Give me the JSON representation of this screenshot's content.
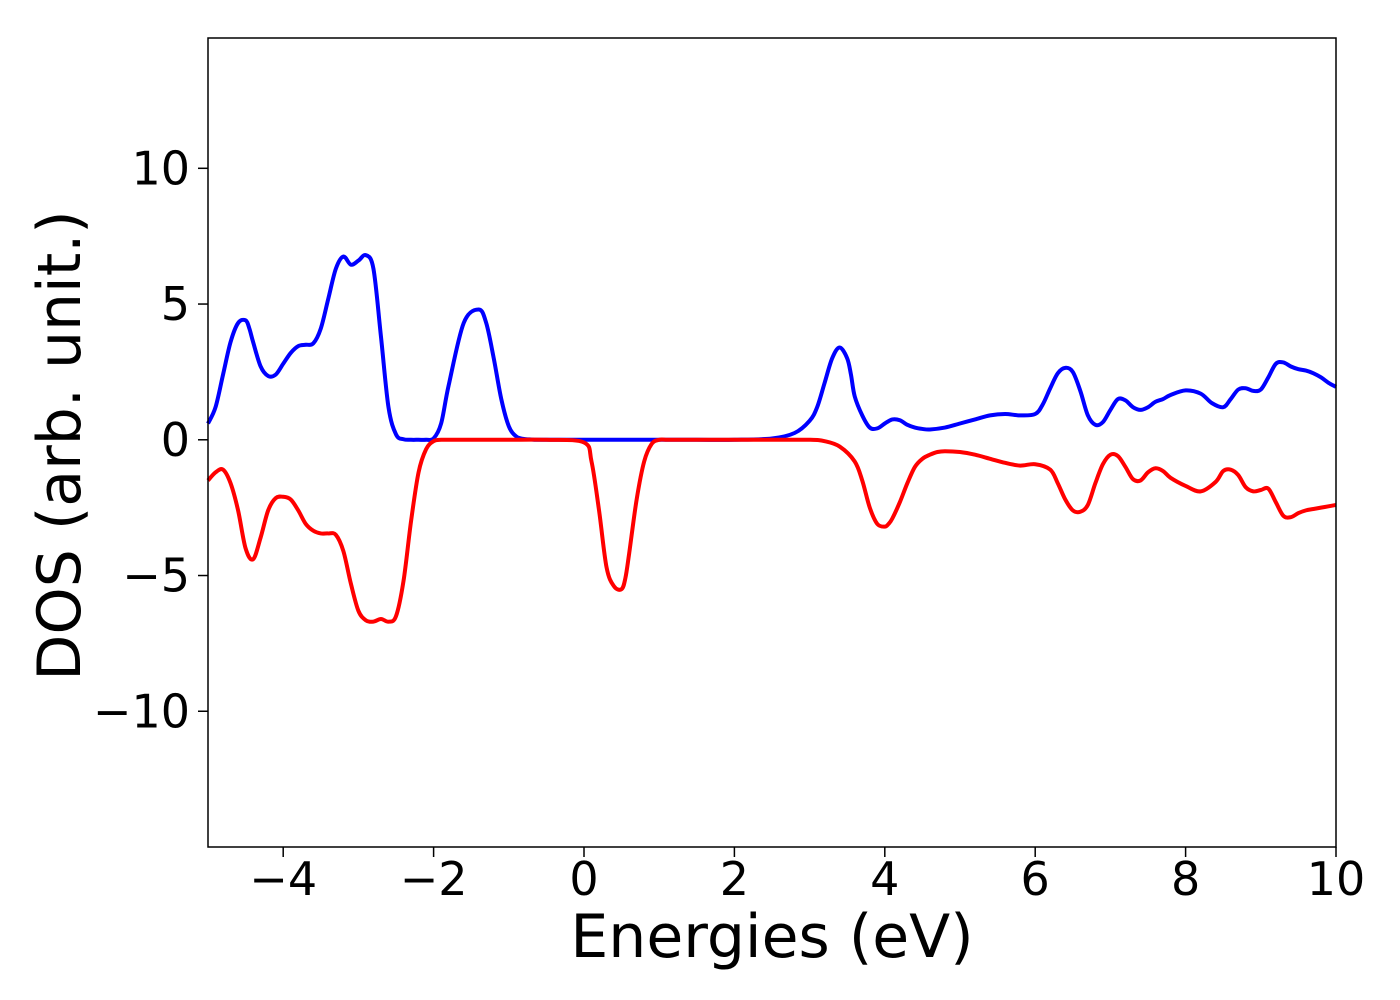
{
  "chart_data": {
    "type": "line",
    "title": "",
    "xlabel": "Energies (eV)",
    "ylabel": "DOS (arb. unit.)",
    "xlim": [
      -5,
      10
    ],
    "ylim": [
      -15,
      14.8
    ],
    "xticks": [
      -4,
      -2,
      0,
      2,
      4,
      6,
      8,
      10
    ],
    "xtick_labels": [
      "−4",
      "−2",
      "0",
      "2",
      "4",
      "6",
      "8",
      "10"
    ],
    "yticks": [
      10,
      5,
      0,
      -5,
      -10
    ],
    "ytick_labels": [
      "10",
      "5",
      "0",
      "−5",
      "−10"
    ],
    "grid": false,
    "legend": "none",
    "series": [
      {
        "color": "#0000ff",
        "x": [
          -5.0,
          -4.9,
          -4.8,
          -4.7,
          -4.6,
          -4.5,
          -4.45,
          -4.4,
          -4.3,
          -4.2,
          -4.1,
          -4.0,
          -3.9,
          -3.8,
          -3.7,
          -3.6,
          -3.5,
          -3.4,
          -3.3,
          -3.2,
          -3.1,
          -3.0,
          -2.9,
          -2.8,
          -2.7,
          -2.6,
          -2.5,
          -2.4,
          -2.3,
          -2.2,
          -2.1,
          -2.0,
          -1.9,
          -1.8,
          -1.6,
          -1.4,
          -1.3,
          -1.2,
          -1.1,
          -1.0,
          -0.9,
          -0.8,
          -0.7,
          -0.65,
          -0.6,
          -0.5,
          -0.4,
          -0.3,
          -0.2,
          -0.1,
          0.0,
          0.2,
          0.5,
          1.0,
          1.5,
          2.0,
          2.5,
          2.8,
          3.0,
          3.1,
          3.2,
          3.3,
          3.4,
          3.5,
          3.55,
          3.6,
          3.7,
          3.8,
          3.9,
          4.0,
          4.1,
          4.2,
          4.3,
          4.4,
          4.5,
          4.6,
          4.8,
          5.0,
          5.2,
          5.4,
          5.6,
          5.8,
          6.0,
          6.1,
          6.2,
          6.3,
          6.4,
          6.5,
          6.6,
          6.7,
          6.8,
          6.9,
          7.0,
          7.1,
          7.2,
          7.3,
          7.4,
          7.5,
          7.6,
          7.7,
          7.8,
          8.0,
          8.2,
          8.35,
          8.5,
          8.6,
          8.7,
          8.8,
          8.9,
          9.0,
          9.1,
          9.2,
          9.3,
          9.4,
          9.5,
          9.6,
          9.7,
          9.8,
          9.9,
          10.0
        ],
        "y": [
          0.6,
          1.2,
          2.4,
          3.6,
          4.3,
          4.4,
          4.1,
          3.6,
          2.7,
          2.35,
          2.4,
          2.8,
          3.2,
          3.45,
          3.5,
          3.55,
          4.1,
          5.2,
          6.3,
          6.75,
          6.45,
          6.6,
          6.8,
          6.3,
          3.8,
          1.2,
          0.2,
          0.02,
          0.0,
          0.0,
          0.0,
          0.05,
          0.6,
          2.0,
          4.3,
          4.8,
          4.3,
          3.0,
          1.5,
          0.5,
          0.12,
          0.03,
          0.01,
          0.0,
          0.0,
          0.0,
          0.0,
          0.0,
          0.0,
          0.0,
          0.0,
          0.0,
          0.0,
          0.0,
          0.0,
          0.0,
          0.05,
          0.25,
          0.7,
          1.2,
          2.1,
          3.0,
          3.4,
          3.0,
          2.4,
          1.6,
          0.9,
          0.45,
          0.42,
          0.6,
          0.75,
          0.72,
          0.55,
          0.45,
          0.4,
          0.38,
          0.45,
          0.6,
          0.75,
          0.9,
          0.95,
          0.9,
          0.95,
          1.3,
          1.9,
          2.45,
          2.65,
          2.5,
          1.8,
          0.9,
          0.55,
          0.65,
          1.1,
          1.5,
          1.45,
          1.2,
          1.1,
          1.2,
          1.4,
          1.5,
          1.65,
          1.82,
          1.7,
          1.35,
          1.2,
          1.5,
          1.85,
          1.9,
          1.8,
          1.85,
          2.3,
          2.8,
          2.85,
          2.7,
          2.6,
          2.55,
          2.45,
          2.3,
          2.1,
          1.95
        ]
      },
      {
        "color": "#ff0000",
        "x": [
          -5.0,
          -4.9,
          -4.8,
          -4.7,
          -4.6,
          -4.5,
          -4.4,
          -4.3,
          -4.2,
          -4.1,
          -4.0,
          -3.9,
          -3.8,
          -3.7,
          -3.6,
          -3.5,
          -3.4,
          -3.3,
          -3.2,
          -3.1,
          -3.0,
          -2.9,
          -2.8,
          -2.7,
          -2.6,
          -2.5,
          -2.4,
          -2.3,
          -2.2,
          -2.1,
          -2.0,
          -1.9,
          -1.8,
          -1.7,
          -1.6,
          -1.4,
          -1.0,
          -0.5,
          0.0,
          0.1,
          0.2,
          0.3,
          0.4,
          0.5,
          0.55,
          0.6,
          0.7,
          0.8,
          0.9,
          1.0,
          1.1,
          1.2,
          1.5,
          2.0,
          2.5,
          3.0,
          3.2,
          3.4,
          3.6,
          3.7,
          3.8,
          3.9,
          4.0,
          4.05,
          4.1,
          4.2,
          4.3,
          4.4,
          4.5,
          4.6,
          4.7,
          4.8,
          5.0,
          5.2,
          5.4,
          5.6,
          5.8,
          6.0,
          6.2,
          6.3,
          6.4,
          6.5,
          6.6,
          6.7,
          6.8,
          6.9,
          7.0,
          7.1,
          7.2,
          7.3,
          7.4,
          7.5,
          7.6,
          7.7,
          7.8,
          8.0,
          8.2,
          8.4,
          8.5,
          8.6,
          8.7,
          8.8,
          8.9,
          9.0,
          9.1,
          9.2,
          9.3,
          9.4,
          9.5,
          9.6,
          9.7,
          9.8,
          9.9,
          10.0
        ],
        "y": [
          -1.5,
          -1.2,
          -1.1,
          -1.6,
          -2.6,
          -4.0,
          -4.4,
          -3.6,
          -2.6,
          -2.15,
          -2.1,
          -2.2,
          -2.6,
          -3.1,
          -3.35,
          -3.45,
          -3.45,
          -3.5,
          -4.1,
          -5.3,
          -6.3,
          -6.65,
          -6.7,
          -6.6,
          -6.7,
          -6.5,
          -5.2,
          -3.0,
          -1.2,
          -0.35,
          -0.05,
          0.0,
          0.0,
          0.0,
          0.0,
          0.0,
          0.0,
          0.0,
          -0.1,
          -0.8,
          -2.6,
          -4.7,
          -5.4,
          -5.5,
          -5.1,
          -4.2,
          -2.2,
          -0.8,
          -0.15,
          0.0,
          0.0,
          0.0,
          0.0,
          0.0,
          0.0,
          0.0,
          -0.05,
          -0.25,
          -0.8,
          -1.5,
          -2.5,
          -3.1,
          -3.2,
          -3.1,
          -2.9,
          -2.3,
          -1.6,
          -1.0,
          -0.7,
          -0.55,
          -0.45,
          -0.42,
          -0.45,
          -0.55,
          -0.7,
          -0.85,
          -0.95,
          -0.9,
          -1.1,
          -1.6,
          -2.2,
          -2.6,
          -2.65,
          -2.4,
          -1.6,
          -0.9,
          -0.55,
          -0.6,
          -1.0,
          -1.45,
          -1.5,
          -1.2,
          -1.05,
          -1.15,
          -1.4,
          -1.7,
          -1.9,
          -1.55,
          -1.15,
          -1.1,
          -1.3,
          -1.75,
          -1.9,
          -1.85,
          -1.8,
          -2.3,
          -2.8,
          -2.85,
          -2.7,
          -2.6,
          -2.55,
          -2.5,
          -2.45,
          -2.4
        ]
      }
    ]
  }
}
